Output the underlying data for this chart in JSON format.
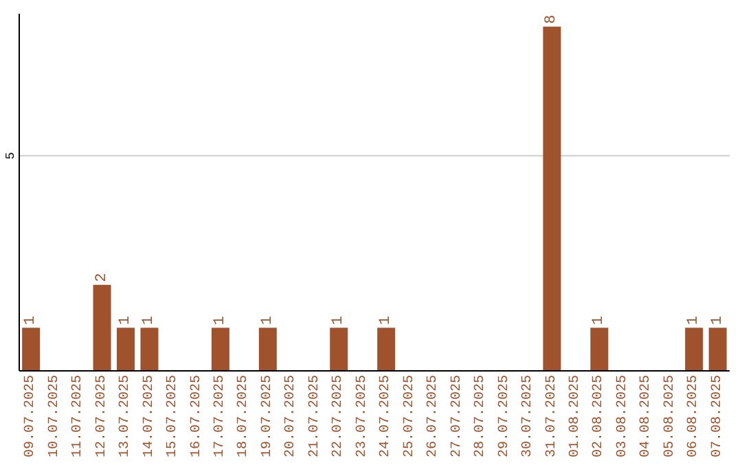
{
  "chart_data": {
    "type": "bar",
    "categories": [
      "09.07.2025",
      "10.07.2025",
      "11.07.2025",
      "12.07.2025",
      "13.07.2025",
      "14.07.2025",
      "15.07.2025",
      "16.07.2025",
      "17.07.2025",
      "18.07.2025",
      "19.07.2025",
      "20.07.2025",
      "21.07.2025",
      "22.07.2025",
      "23.07.2025",
      "24.07.2025",
      "25.07.2025",
      "26.07.2025",
      "27.07.2025",
      "28.07.2025",
      "29.07.2025",
      "30.07.2025",
      "31.07.2025",
      "01.08.2025",
      "02.08.2025",
      "03.08.2025",
      "04.08.2025",
      "05.08.2025",
      "06.08.2025",
      "07.08.2025"
    ],
    "values": [
      1,
      0,
      0,
      2,
      1,
      1,
      0,
      0,
      1,
      0,
      1,
      0,
      0,
      1,
      0,
      1,
      0,
      0,
      0,
      0,
      0,
      0,
      8,
      0,
      1,
      0,
      0,
      0,
      1,
      1
    ],
    "value_labels": [
      "1",
      null,
      null,
      "2",
      "1",
      "1",
      null,
      null,
      "1",
      null,
      "1",
      null,
      null,
      "1",
      null,
      "1",
      null,
      null,
      null,
      null,
      null,
      null,
      "8",
      null,
      "1",
      null,
      null,
      null,
      "1",
      "1"
    ],
    "color": "#a0522d",
    "ylim": [
      0,
      8.3
    ],
    "yticks": [
      5
    ],
    "grid": "y"
  }
}
